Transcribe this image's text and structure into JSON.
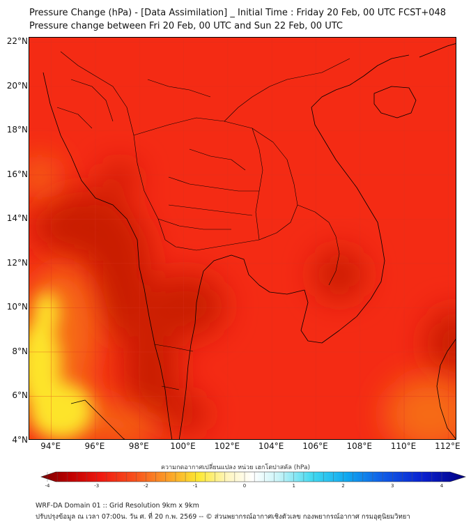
{
  "header": {
    "title": "Pressure Change (hPa) - [Data Assimilation] _ Initial Time : Friday 20 Feb, 00 UTC FCST+048",
    "subtitle": "Pressure change between Fri 20 Feb, 00 UTC and Sun 22 Feb, 00 UTC"
  },
  "map": {
    "lat_labels": [
      "22°N",
      "20°N",
      "18°N",
      "16°N",
      "14°N",
      "12°N",
      "10°N",
      "8°N",
      "6°N",
      "4°N"
    ],
    "lon_labels": [
      "94°E",
      "96°E",
      "98°E",
      "100°E",
      "102°E",
      "104°E",
      "106°E",
      "108°E",
      "110°E",
      "112°E"
    ],
    "lat_range": [
      4,
      22.2
    ],
    "lon_range": [
      93,
      112.4
    ],
    "grid": true,
    "fill_colors": {
      "base": "#f42b14",
      "dark": "#c91c05",
      "mid": "#f66a14",
      "light": "#fde42b"
    }
  },
  "colorbar": {
    "title": "ความกดอากาศเปลี่ยนแปลง หน่วย เฮกโตปาสคัล (hPa)",
    "ticks": [
      "-4",
      "-3",
      "-2",
      "-1",
      "0",
      "1",
      "2",
      "3",
      "4"
    ],
    "range": [
      -4,
      4
    ]
  },
  "footer": {
    "line1": "WRF-DA Domain 01 :: Grid Resolution 9km x 9km",
    "line2": "ปรับปรุงข้อมูล ณ เวลา 07:00น. วัน ศ. ที่ 20 ก.พ. 2569 -- © ส่วนพยากรณ์อากาศเชิงตัวเลข กองพยากรณ์อากาศ กรมอุตุนิยมวิทยา"
  }
}
